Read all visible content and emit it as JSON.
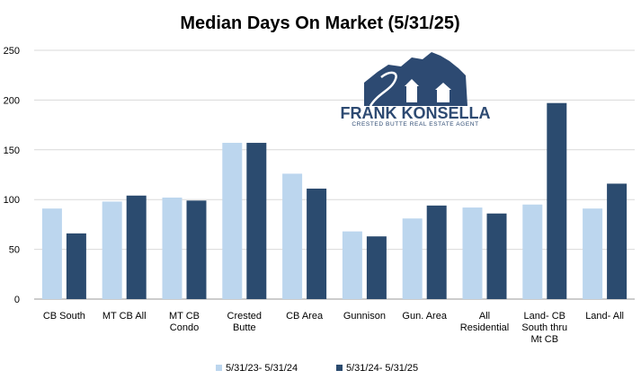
{
  "logo": {
    "name": "FRANK KONSELLA",
    "tagline": "CRESTED BUTTE REAL ESTATE AGENT",
    "color": "#2d4a72"
  },
  "chart_data": {
    "type": "bar",
    "title": "Median Days On Market (5/31/25)",
    "xlabel": "",
    "ylabel": "",
    "ylim": [
      0,
      250
    ],
    "yticks": [
      0,
      50,
      100,
      150,
      200,
      250
    ],
    "grid": true,
    "legend_position": "bottom",
    "categories": [
      [
        "CB South"
      ],
      [
        "MT CB All"
      ],
      [
        "MT CB",
        "Condo"
      ],
      [
        "Crested",
        "Butte"
      ],
      [
        "CB Area"
      ],
      [
        "Gunnison"
      ],
      [
        "Gun. Area"
      ],
      [
        "All",
        "Residential"
      ],
      [
        "Land- CB",
        "South thru",
        "Mt CB"
      ],
      [
        "Land- All"
      ]
    ],
    "series": [
      {
        "name": "5/31/23- 5/31/24",
        "color": "#bcd6ee",
        "values": [
          91,
          98,
          102,
          157,
          126,
          68,
          81,
          92,
          95,
          91
        ]
      },
      {
        "name": "5/31/24- 5/31/25",
        "color": "#2b4b6f",
        "values": [
          66,
          104,
          99,
          157,
          111,
          63,
          94,
          86,
          197,
          116
        ]
      }
    ]
  }
}
